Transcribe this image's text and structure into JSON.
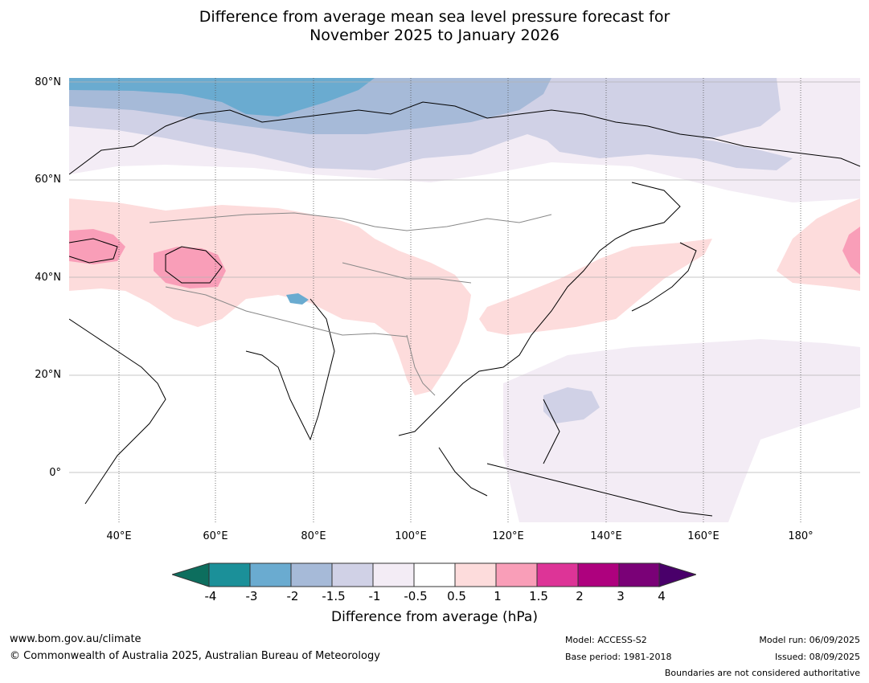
{
  "title_line1": "Difference from average mean sea level pressure forecast for",
  "title_line2": "November 2025 to January 2026",
  "map": {
    "lat_labels": [
      "80°N",
      "60°N",
      "40°N",
      "20°N",
      "0°"
    ],
    "lon_labels": [
      "40°E",
      "60°E",
      "80°E",
      "100°E",
      "120°E",
      "140°E",
      "160°E",
      "180°"
    ]
  },
  "colorbar": {
    "ticks": [
      "-4",
      "-3",
      "-2",
      "-1.5",
      "-1",
      "-0.5",
      "0.5",
      "1",
      "1.5",
      "2",
      "3",
      "4"
    ],
    "colors": [
      "#1b9099",
      "#6aabd0",
      "#a6bad8",
      "#d0d1e6",
      "#f3ecf5",
      "#ffffff",
      "#fddcdc",
      "#f99eb8",
      "#dd3497",
      "#ae017e",
      "#7a0177"
    ],
    "low_extend_color": "#0d6e5e",
    "high_extend_color": "#49006a",
    "label": "Difference from average (hPa)"
  },
  "footer": {
    "website": "www.bom.gov.au/climate",
    "copyright": "© Commonwealth of Australia 2025, Australian Bureau of Meteorology",
    "model": "Model: ACCESS-S2",
    "base_period": "Base period: 1981-2018",
    "model_run": "Model run: 06/09/2025",
    "issued": "Issued: 08/09/2025",
    "boundaries_note": "Boundaries are not considered authoritative"
  }
}
